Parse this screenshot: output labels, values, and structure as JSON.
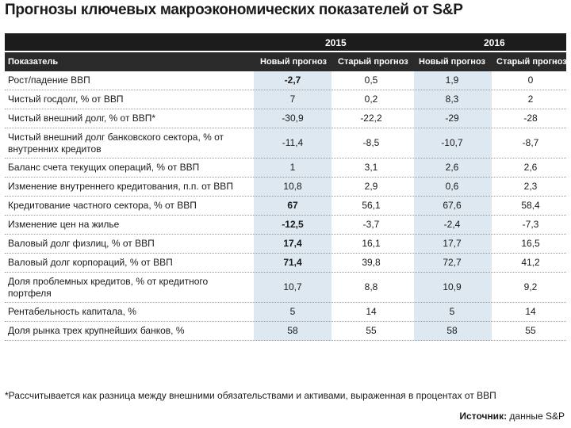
{
  "title": "Прогнозы ключевых макроэкономических показателей от S&P",
  "years": [
    "2015",
    "2016"
  ],
  "columns": [
    "Показатель",
    "Новый прогноз",
    "Старый прогноз",
    "Новый прогноз",
    "Старый прогноз"
  ],
  "rows": [
    {
      "label": "Рост/падение ВВП",
      "values": [
        "-2,7",
        "0,5",
        "1,9",
        "0"
      ]
    },
    {
      "label": "Чистый госдолг, % от ВВП",
      "values": [
        "7",
        "0,2",
        "8,3",
        "2"
      ]
    },
    {
      "label": "Чистый внешний долг, % от ВВП*",
      "values": [
        "-30,9",
        "-22,2",
        "-29",
        "-28"
      ]
    },
    {
      "label": "Чистый внешний долг банковского сектора, % от внутренних кредитов",
      "values": [
        "-11,4",
        "-8,5",
        "-10,7",
        "-8,7"
      ]
    },
    {
      "label": "Баланс счета текущих операций, % от ВВП",
      "values": [
        "1",
        "3,1",
        "2,6",
        "2,6"
      ]
    },
    {
      "label": "Изменение внутреннего кредитования, п.п. от ВВП",
      "values": [
        "10,8",
        "2,9",
        "0,6",
        "2,3"
      ]
    },
    {
      "label": "Кредитование частного сектора, % от ВВП",
      "values": [
        "67",
        "56,1",
        "67,6",
        "58,4"
      ]
    },
    {
      "label": "Изменение цен на жилье",
      "values": [
        "-12,5",
        "-3,7",
        "-2,4",
        "-7,3"
      ]
    },
    {
      "label": "Валовый долг физлиц, % от ВВП",
      "values": [
        "17,4",
        "16,1",
        "17,7",
        "16,5"
      ]
    },
    {
      "label": "Валовый долг корпораций, % от ВВП",
      "values": [
        "71,4",
        "39,8",
        "72,7",
        "41,2"
      ]
    },
    {
      "label": "Доля проблемных кредитов, % от кредитного портфеля",
      "values": [
        "10,7",
        "8,8",
        "10,9",
        "9,2"
      ]
    },
    {
      "label": "Рентабельность капитала, %",
      "values": [
        "5",
        "14",
        "5",
        "14"
      ]
    },
    {
      "label": "Доля рынка трех крупнейших банков, %",
      "values": [
        "58",
        "55",
        "58",
        "55"
      ]
    }
  ],
  "footnote": "*Рассчитывается как разница между внешними обязательствами и активами, выраженная в процентах от ВВП",
  "source_label": "Источник:",
  "source_value": "данные S&P"
}
